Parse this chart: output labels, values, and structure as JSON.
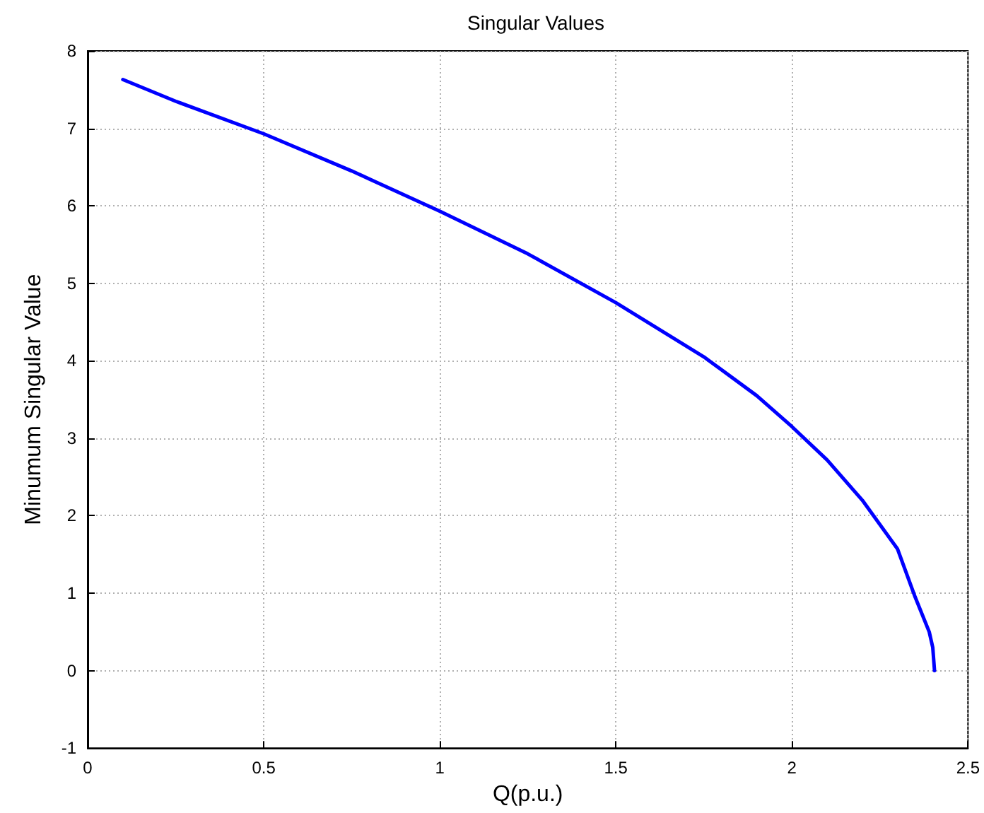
{
  "chart_data": {
    "type": "line",
    "title": "Singular Values",
    "xlabel": "Q(p.u.)",
    "ylabel": "Minumum Singular Value",
    "series": [
      {
        "color": "#0000ff",
        "x": [
          0.1,
          0.25,
          0.5,
          0.75,
          1,
          1.25,
          1.5,
          1.75,
          1.9,
          2,
          2.1,
          2.2,
          2.3,
          2.35,
          2.39,
          2.4,
          2.405
        ],
        "values": [
          7.63,
          7.35,
          6.93,
          6.45,
          5.93,
          5.38,
          4.75,
          4.05,
          3.55,
          3.15,
          2.72,
          2.2,
          1.57,
          0.95,
          0.5,
          0.3,
          0.0
        ]
      }
    ],
    "xlim": [
      0,
      2.5
    ],
    "xticks": [
      0,
      0.5,
      1,
      1.5,
      2,
      2.5
    ],
    "ylim": [
      -1,
      8
    ],
    "yticks": [
      -1,
      0,
      1,
      2,
      3,
      4,
      5,
      6,
      7,
      8
    ],
    "grid": true,
    "marker": "none",
    "line_style": "solid"
  }
}
